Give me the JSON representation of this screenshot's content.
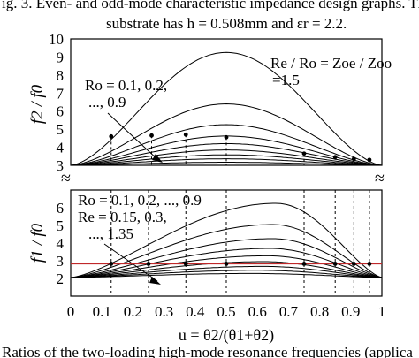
{
  "caption": {
    "line1": "ig. 3. Even- and odd-mode characteristic impedance design graphs. Th",
    "line2": "substrate has h = 0.508mm and εr = 2.2.",
    "bottom": "Ratios of the two-loading high-mode resonance frequencies (applica"
  },
  "chart_data": [
    {
      "type": "line",
      "panel": "top",
      "ylabel": "f2 / f0",
      "ylim": [
        3,
        10
      ],
      "yticks": [
        "3",
        "4",
        "5",
        "6",
        "7",
        "8",
        "9",
        "10"
      ],
      "annotations": {
        "ratio": "Re / Ro = Zoe / Zoo",
        "ratio_value": "=1.5",
        "param_line1": "Ro = 0.1, 0.2,",
        "param_line2": "..., 0.9"
      },
      "series_Ro": [
        "0.1",
        "0.2",
        "0.3",
        "0.4",
        "0.5",
        "0.6",
        "0.7",
        "0.8",
        "0.9"
      ],
      "series": [
        {
          "peak_u": 0.5,
          "peak": 9.25,
          "marker_u": 0.13
        },
        {
          "peak_u": 0.5,
          "peak": 6.4,
          "marker_u": 0.26
        },
        {
          "peak_u": 0.5,
          "peak": 5.25,
          "marker_u": 0.37
        },
        {
          "peak_u": 0.5,
          "peak": 4.62,
          "marker_u": 0.5
        },
        {
          "peak_u": 0.5,
          "peak": 4.2,
          "marker_u": 0.75
        },
        {
          "peak_u": 0.5,
          "peak": 3.85,
          "marker_u": 0.86
        },
        {
          "peak_u": 0.5,
          "peak": 3.58,
          "marker_u": 0.92
        },
        {
          "peak_u": 0.5,
          "peak": 3.36,
          "marker_u": 0.96
        },
        {
          "peak_u": 0.5,
          "peak": 3.17,
          "marker_u": 0.98
        }
      ],
      "marker_values": [
        4.6,
        4.65,
        4.7,
        4.55,
        3.65,
        3.45,
        3.35,
        3.3
      ],
      "guide_u": [
        0.13,
        0.26,
        0.37,
        0.5,
        0.75,
        0.85,
        0.91,
        0.96
      ]
    },
    {
      "type": "line",
      "panel": "bottom",
      "ylabel": "f1 / f0",
      "ylim": [
        1,
        7
      ],
      "yticks": [
        "2",
        "3",
        "4",
        "5",
        "6"
      ],
      "annotations": {
        "ro_line": "Ro = 0.1, 0.2, ..., 0.9",
        "re_line1": "Re = 0.15, 0.3,",
        "re_line2": "..., 1.35"
      },
      "reference_value": 2.83,
      "series": [
        {
          "peak_u": 0.66,
          "peak": 6.25
        },
        {
          "peak_u": 0.65,
          "peak": 5.05
        },
        {
          "peak_u": 0.65,
          "peak": 4.25
        },
        {
          "peak_u": 0.64,
          "peak": 3.7
        },
        {
          "peak_u": 0.63,
          "peak": 3.28
        },
        {
          "peak_u": 0.62,
          "peak": 2.95
        },
        {
          "peak_u": 0.62,
          "peak": 2.68
        },
        {
          "peak_u": 0.6,
          "peak": 2.46
        },
        {
          "peak_u": 0.58,
          "peak": 2.28
        }
      ],
      "marker_u": [
        0.13,
        0.25,
        0.37,
        0.5,
        0.75,
        0.85,
        0.91,
        0.96
      ],
      "marker_values": [
        2.83,
        2.83,
        2.83,
        2.83,
        2.83,
        2.83,
        2.83,
        2.83
      ]
    }
  ],
  "x_axis": {
    "xlim": [
      0,
      1
    ],
    "ticks": [
      "0",
      "0.1",
      "0.2",
      "0.3",
      "0.4",
      "0.5",
      "0.6",
      "0.7",
      "0.8",
      "0.9",
      "1"
    ],
    "label": "u = θ2/(θ1+θ2)"
  },
  "colors": {
    "curves": "#000000",
    "reference_line": "#c0282a"
  }
}
